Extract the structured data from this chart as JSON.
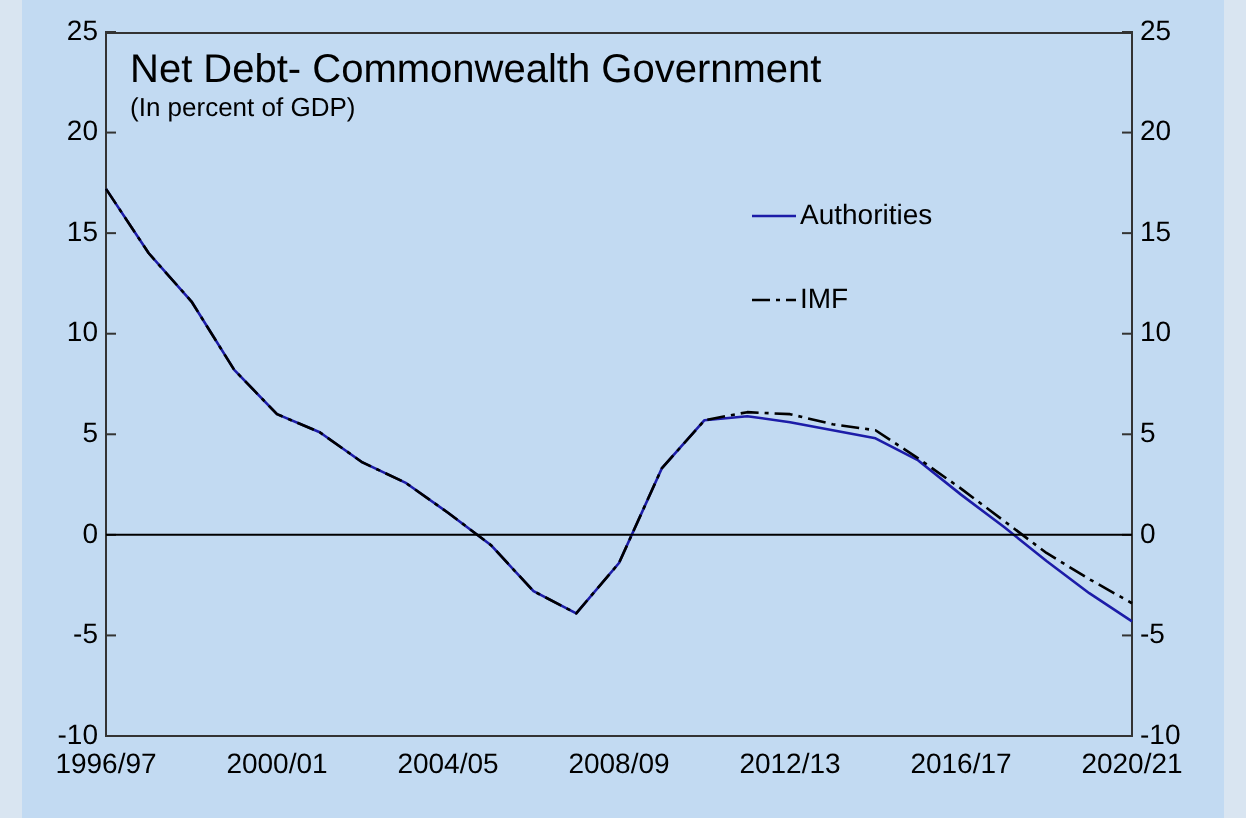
{
  "chart_data": {
    "type": "line",
    "title": "Net Debt- Commonwealth Government",
    "subtitle": "(In percent of GDP)",
    "categories": [
      "1996/97",
      null,
      null,
      null,
      "2000/01",
      null,
      null,
      null,
      "2004/05",
      null,
      null,
      null,
      "2008/09",
      null,
      null,
      null,
      "2012/13",
      null,
      null,
      null,
      "2016/17",
      null,
      null,
      null,
      "2020/21"
    ],
    "series": [
      {
        "name": "Authorities",
        "color": "#1c1ca8",
        "line_style": "solid",
        "values": [
          17.2,
          14.0,
          11.6,
          8.2,
          6.0,
          5.1,
          3.6,
          2.6,
          1.1,
          -0.5,
          -2.8,
          -3.9,
          -1.4,
          3.3,
          5.7,
          5.9,
          5.6,
          5.2,
          4.8,
          3.7,
          2.0,
          0.4,
          -1.3,
          -2.9,
          -4.3
        ]
      },
      {
        "name": "IMF",
        "color": "#000000",
        "line_style": "dashed",
        "values": [
          17.2,
          14.0,
          11.6,
          8.2,
          6.0,
          5.1,
          3.6,
          2.6,
          1.1,
          -0.5,
          -2.8,
          -3.9,
          -1.4,
          3.3,
          5.7,
          6.1,
          6.0,
          5.5,
          5.2,
          3.8,
          2.3,
          0.7,
          -0.9,
          -2.2,
          -3.4
        ]
      }
    ],
    "ylim": [
      -10,
      25
    ],
    "yticks": [
      -10,
      -5,
      0,
      5,
      10,
      15,
      20,
      25
    ],
    "y2lim": [
      -10,
      25
    ],
    "y2ticks": [
      -10,
      -5,
      0,
      5,
      10,
      15,
      20,
      25
    ],
    "ref_lines": [
      {
        "axis": "y",
        "value": 0,
        "color": "#000000"
      }
    ],
    "grid": false,
    "legend": "top right",
    "marker": "none"
  }
}
